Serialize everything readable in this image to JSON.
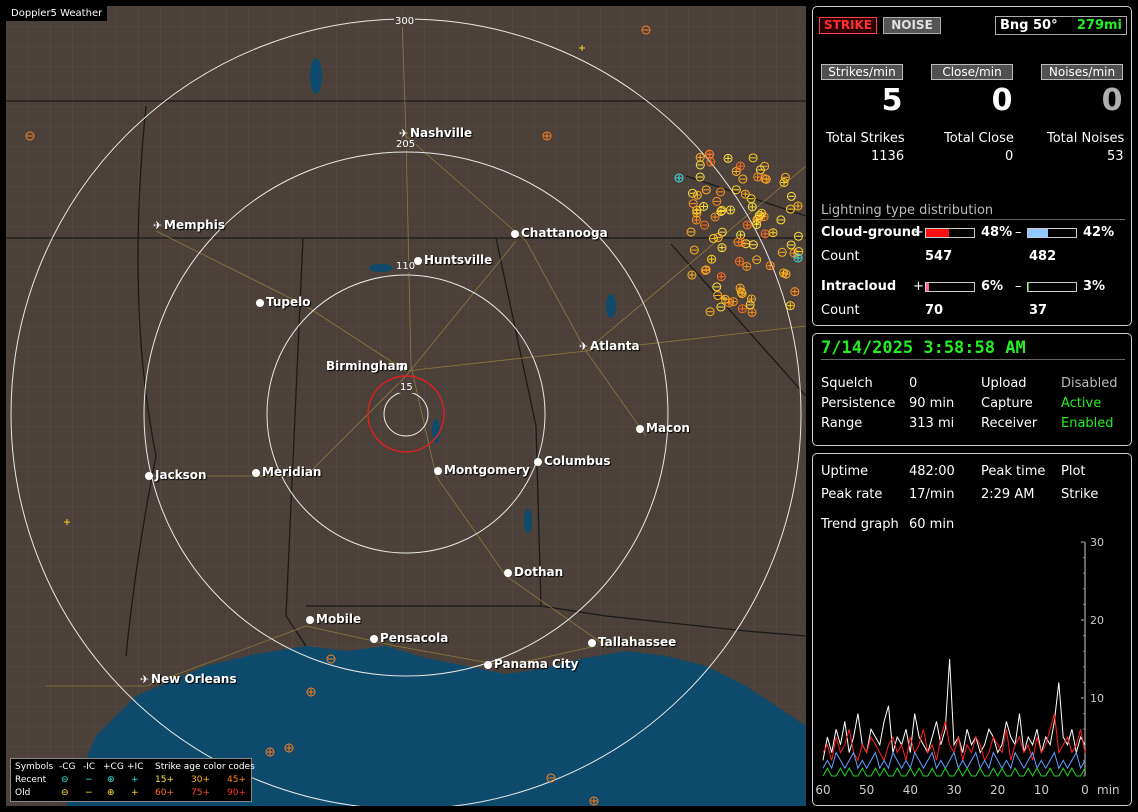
{
  "app": {
    "title": "Doppler5 Weather"
  },
  "map": {
    "cities": [
      {
        "name": "Nashville",
        "type": "airport"
      },
      {
        "name": "Memphis",
        "type": "airport"
      },
      {
        "name": "Chattanooga",
        "type": "city"
      },
      {
        "name": "Huntsville",
        "type": "city"
      },
      {
        "name": "Tupelo",
        "type": "city"
      },
      {
        "name": "Birmingham",
        "type": "city"
      },
      {
        "name": "Atlanta",
        "type": "airport"
      },
      {
        "name": "Macon",
        "type": "city"
      },
      {
        "name": "Jackson",
        "type": "city"
      },
      {
        "name": "Meridian",
        "type": "city"
      },
      {
        "name": "Montgomery",
        "type": "city"
      },
      {
        "name": "Columbus",
        "type": "city"
      },
      {
        "name": "Dothan",
        "type": "city"
      },
      {
        "name": "Mobile",
        "type": "city"
      },
      {
        "name": "Pensacola",
        "type": "city"
      },
      {
        "name": "Tallahassee",
        "type": "city"
      },
      {
        "name": "Panama City",
        "type": "city"
      },
      {
        "name": "New Orleans",
        "type": "airport"
      }
    ],
    "range_rings": [
      "300",
      "205",
      "110",
      "15"
    ],
    "colors": {
      "land": "#4b413a",
      "water": "#0e4a6c",
      "ring": "#e8e8e8",
      "close_ring": "#e02020"
    }
  },
  "legend": {
    "symbols_label": "Symbols",
    "headers": [
      "-CG",
      "-IC",
      "+CG",
      "+IC"
    ],
    "age_title": "Strike age color codes",
    "recent_label": "Recent",
    "old_label": "Old",
    "recent_ages": [
      "15+",
      "30+",
      "45+"
    ],
    "old_ages": [
      "60+",
      "75+",
      "90+"
    ]
  },
  "status": {
    "strike_btn": "STRIKE",
    "noise_btn": "NOISE",
    "bearing": "Bng 50°",
    "distance": "279mi",
    "headers": [
      "Strikes/min",
      "Close/min",
      "Noises/min"
    ],
    "rates": [
      "5",
      "0",
      "0"
    ],
    "total_labels": [
      "Total Strikes",
      "Total Close",
      "Total Noises"
    ],
    "totals": [
      "1136",
      "0",
      "53"
    ],
    "dist_title": "Lightning type distribution",
    "cg_label": "Cloud-ground",
    "ic_label": "Intracloud",
    "count_label": "Count",
    "plus": "+",
    "minus": "–",
    "cg_pos_pct": "48%",
    "cg_neg_pct": "42%",
    "ic_pos_pct": "6%",
    "ic_neg_pct": "3%",
    "cg_pos_frac": 0.48,
    "cg_neg_frac": 0.42,
    "ic_pos_frac": 0.06,
    "ic_neg_frac": 0.03,
    "cg_pos_count": "547",
    "cg_neg_count": "482",
    "ic_pos_count": "70",
    "ic_neg_count": "37"
  },
  "settings": {
    "datetime": "7/14/2025 3:58:58 AM",
    "squelch_label": "Squelch",
    "squelch": "0",
    "persistence_label": "Persistence",
    "persistence": "90 min",
    "range_label": "Range",
    "range": "313 mi",
    "upload_label": "Upload",
    "upload": "Disabled",
    "capture_label": "Capture",
    "capture": "Active",
    "receiver_label": "Receiver",
    "receiver": "Enabled"
  },
  "stats": {
    "uptime_label": "Uptime",
    "uptime": "482:00",
    "peak_time_label": "Peak time",
    "peak_time": "2:29 AM",
    "plot_label": "Plot",
    "plot": "Strike",
    "peak_rate_label": "Peak rate",
    "peak_rate": "17/min",
    "trend_label": "Trend graph",
    "trend": "60 min"
  },
  "chart_data": {
    "type": "line",
    "x_ticks": [
      "60",
      "50",
      "40",
      "30",
      "20",
      "10",
      "0"
    ],
    "x_unit": "min",
    "y_ticks": [
      "30",
      "20",
      "10"
    ],
    "xlim": [
      60,
      0
    ],
    "ylim": [
      0,
      30
    ],
    "series": [
      {
        "color": "#ffffff",
        "values": [
          2,
          5,
          3,
          6,
          4,
          7,
          3,
          5,
          8,
          4,
          3,
          6,
          5,
          4,
          7,
          9,
          3,
          5,
          4,
          6,
          3,
          8,
          5,
          4,
          3,
          5,
          7,
          4,
          6,
          15,
          4,
          5,
          3,
          6,
          4,
          5,
          3,
          4,
          6,
          5,
          3,
          4,
          7,
          5,
          4,
          8,
          3,
          5,
          4,
          6,
          3,
          5,
          4,
          7,
          12,
          5,
          4,
          6,
          3,
          5,
          4
        ]
      },
      {
        "color": "#ff2020",
        "values": [
          3,
          4,
          2,
          5,
          3,
          4,
          6,
          3,
          2,
          4,
          3,
          5,
          4,
          3,
          2,
          4,
          5,
          3,
          4,
          2,
          5,
          3,
          4,
          6,
          3,
          4,
          2,
          5,
          7,
          4,
          3,
          5,
          2,
          4,
          3,
          5,
          4,
          2,
          3,
          5,
          4,
          3,
          6,
          2,
          4,
          5,
          3,
          4,
          2,
          5,
          3,
          4,
          6,
          8,
          3,
          4,
          5,
          3,
          4,
          6,
          3
        ]
      },
      {
        "color": "#60a0ff",
        "values": [
          1,
          2,
          1,
          3,
          2,
          1,
          2,
          3,
          1,
          2,
          1,
          2,
          3,
          1,
          2,
          1,
          3,
          2,
          1,
          2,
          1,
          3,
          2,
          1,
          2,
          3,
          1,
          2,
          1,
          2,
          3,
          1,
          2,
          1,
          2,
          3,
          1,
          2,
          1,
          3,
          2,
          1,
          2,
          1,
          3,
          2,
          1,
          2,
          3,
          1,
          2,
          1,
          2,
          3,
          1,
          2,
          1,
          2,
          3,
          1,
          2
        ]
      },
      {
        "color": "#20d020",
        "values": [
          0,
          1,
          0,
          0,
          1,
          0,
          1,
          0,
          0,
          1,
          0,
          0,
          1,
          0,
          1,
          0,
          0,
          1,
          0,
          0,
          1,
          0,
          1,
          0,
          0,
          1,
          0,
          0,
          1,
          0,
          0,
          1,
          0,
          1,
          0,
          0,
          1,
          0,
          0,
          1,
          0,
          1,
          0,
          0,
          1,
          0,
          0,
          1,
          0,
          1,
          0,
          0,
          1,
          0,
          0,
          1,
          0,
          1,
          0,
          0,
          1
        ]
      }
    ]
  }
}
